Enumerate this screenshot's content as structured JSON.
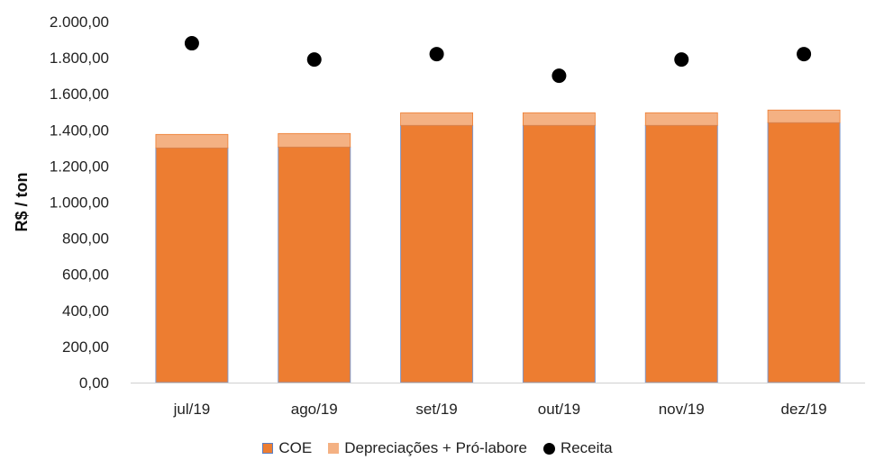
{
  "chart_data": {
    "type": "bar",
    "stacked": true,
    "categories": [
      "jul/19",
      "ago/19",
      "set/19",
      "out/19",
      "nov/19",
      "dez/19"
    ],
    "series": [
      {
        "name": "COE",
        "kind": "bar",
        "color": "#ED7D31",
        "values": [
          1300,
          1305,
          1425,
          1425,
          1425,
          1440
        ]
      },
      {
        "name": "Depreciações + Pró-labore",
        "kind": "bar",
        "color": "#F4B183",
        "values": [
          75,
          75,
          70,
          70,
          70,
          70
        ]
      },
      {
        "name": "Receita",
        "kind": "scatter",
        "color": "#000000",
        "values": [
          1880,
          1790,
          1820,
          1700,
          1790,
          1820
        ]
      }
    ],
    "xlabel": "",
    "ylabel": "R$ / ton",
    "ylim": [
      0,
      2000
    ],
    "yticks": [
      "0,00",
      "200,00",
      "400,00",
      "600,00",
      "800,00",
      "1.000,00",
      "1.200,00",
      "1.400,00",
      "1.600,00",
      "1.800,00",
      "2.000,00"
    ],
    "grid": false,
    "legend_position": "bottom"
  }
}
